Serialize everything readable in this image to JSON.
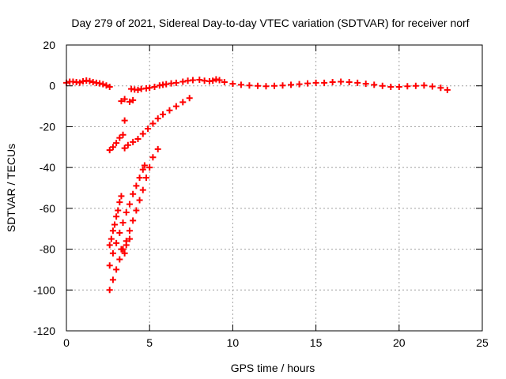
{
  "chart_data": {
    "type": "scatter",
    "title": "Day 279 of 2021, Sidereal Day-to-day VTEC variation (SDTVAR) for receiver norf",
    "xlabel": "GPS time / hours",
    "ylabel": "SDTVAR / TECUs",
    "xlim": [
      0,
      25
    ],
    "ylim": [
      -120,
      20
    ],
    "xticks": [
      0,
      5,
      10,
      15,
      20,
      25
    ],
    "yticks": [
      -120,
      -100,
      -80,
      -60,
      -40,
      -20,
      0,
      20
    ],
    "grid": true,
    "marker": "plus",
    "color": "#ff0000",
    "series": [
      {
        "points": [
          [
            0.0,
            1.5
          ],
          [
            0.2,
            2.0
          ],
          [
            0.4,
            2.0
          ],
          [
            0.6,
            1.8
          ],
          [
            0.8,
            1.6
          ],
          [
            1.0,
            2.2
          ],
          [
            1.2,
            2.6
          ],
          [
            1.4,
            2.3
          ],
          [
            1.6,
            1.8
          ],
          [
            1.8,
            1.5
          ],
          [
            2.0,
            1.2
          ],
          [
            2.2,
            0.8
          ],
          [
            2.4,
            0.2
          ],
          [
            2.6,
            -0.5
          ],
          [
            3.3,
            -7.5
          ],
          [
            3.5,
            -6.5
          ],
          [
            3.8,
            -7.8
          ],
          [
            4.0,
            -7.0
          ],
          [
            3.5,
            -17.0
          ],
          [
            3.9,
            -1.5
          ],
          [
            4.1,
            -1.8
          ],
          [
            4.3,
            -2.0
          ],
          [
            4.5,
            -1.5
          ],
          [
            4.8,
            -1.2
          ],
          [
            5.0,
            -1.0
          ],
          [
            5.3,
            -0.5
          ],
          [
            5.6,
            0.2
          ],
          [
            5.8,
            0.5
          ],
          [
            6.0,
            0.8
          ],
          [
            6.3,
            1.2
          ],
          [
            6.6,
            1.5
          ],
          [
            7.0,
            2.0
          ],
          [
            7.3,
            2.5
          ],
          [
            7.6,
            2.8
          ],
          [
            8.0,
            3.0
          ],
          [
            8.3,
            2.5
          ],
          [
            8.6,
            2.2
          ],
          [
            8.8,
            2.5
          ],
          [
            9.0,
            3.2
          ],
          [
            9.2,
            2.8
          ],
          [
            9.5,
            1.8
          ],
          [
            10.0,
            1.0
          ],
          [
            10.5,
            0.5
          ],
          [
            11.0,
            0.2
          ],
          [
            11.5,
            0.0
          ],
          [
            12.0,
            -0.2
          ],
          [
            12.5,
            0.0
          ],
          [
            13.0,
            0.2
          ],
          [
            13.5,
            0.5
          ],
          [
            14.0,
            0.8
          ],
          [
            14.5,
            1.2
          ],
          [
            15.0,
            1.5
          ],
          [
            15.5,
            1.5
          ],
          [
            16.0,
            1.8
          ],
          [
            16.5,
            2.0
          ],
          [
            17.0,
            1.8
          ],
          [
            17.5,
            1.5
          ],
          [
            18.0,
            1.0
          ],
          [
            18.5,
            0.5
          ],
          [
            19.0,
            0.0
          ],
          [
            19.5,
            -0.5
          ],
          [
            20.0,
            -0.5
          ],
          [
            20.5,
            -0.2
          ],
          [
            21.0,
            0.0
          ],
          [
            21.5,
            0.2
          ],
          [
            22.0,
            -0.3
          ],
          [
            22.5,
            -1.0
          ],
          [
            22.9,
            -2.0
          ],
          [
            2.6,
            -31.5
          ],
          [
            2.8,
            -30.0
          ],
          [
            3.0,
            -28.0
          ],
          [
            3.2,
            -25.5
          ],
          [
            3.4,
            -24.0
          ],
          [
            3.5,
            -30.5
          ],
          [
            3.7,
            -29.0
          ],
          [
            4.0,
            -27.5
          ],
          [
            4.3,
            -26.0
          ],
          [
            4.6,
            -23.5
          ],
          [
            4.9,
            -21.0
          ],
          [
            5.2,
            -18.5
          ],
          [
            5.5,
            -16.0
          ],
          [
            5.8,
            -14.0
          ],
          [
            6.2,
            -12.0
          ],
          [
            6.6,
            -10.0
          ],
          [
            7.0,
            -8.0
          ],
          [
            7.4,
            -6.0
          ],
          [
            2.6,
            -78.0
          ],
          [
            2.7,
            -75.0
          ],
          [
            2.8,
            -71.0
          ],
          [
            2.9,
            -68.0
          ],
          [
            3.0,
            -64.0
          ],
          [
            3.1,
            -61.0
          ],
          [
            3.2,
            -57.0
          ],
          [
            3.3,
            -54.0
          ],
          [
            2.6,
            -88.0
          ],
          [
            2.8,
            -82.0
          ],
          [
            3.0,
            -77.0
          ],
          [
            3.2,
            -72.0
          ],
          [
            3.4,
            -67.0
          ],
          [
            3.6,
            -62.0
          ],
          [
            3.8,
            -58.0
          ],
          [
            4.0,
            -53.0
          ],
          [
            4.2,
            -49.0
          ],
          [
            4.4,
            -45.0
          ],
          [
            4.6,
            -41.0
          ],
          [
            4.7,
            -39.0
          ],
          [
            3.3,
            -80.0
          ],
          [
            3.5,
            -82.0
          ],
          [
            3.6,
            -78.0
          ],
          [
            3.8,
            -75.0
          ],
          [
            2.6,
            -100.0
          ],
          [
            2.8,
            -95.0
          ],
          [
            3.0,
            -90.0
          ],
          [
            3.2,
            -85.0
          ],
          [
            3.4,
            -80.0
          ],
          [
            3.6,
            -76.0
          ],
          [
            3.8,
            -71.0
          ],
          [
            4.0,
            -66.0
          ],
          [
            4.2,
            -61.0
          ],
          [
            4.4,
            -56.0
          ],
          [
            4.6,
            -51.0
          ],
          [
            4.8,
            -45.0
          ],
          [
            5.0,
            -40.0
          ],
          [
            5.2,
            -35.0
          ],
          [
            5.5,
            -31.0
          ]
        ]
      }
    ]
  }
}
